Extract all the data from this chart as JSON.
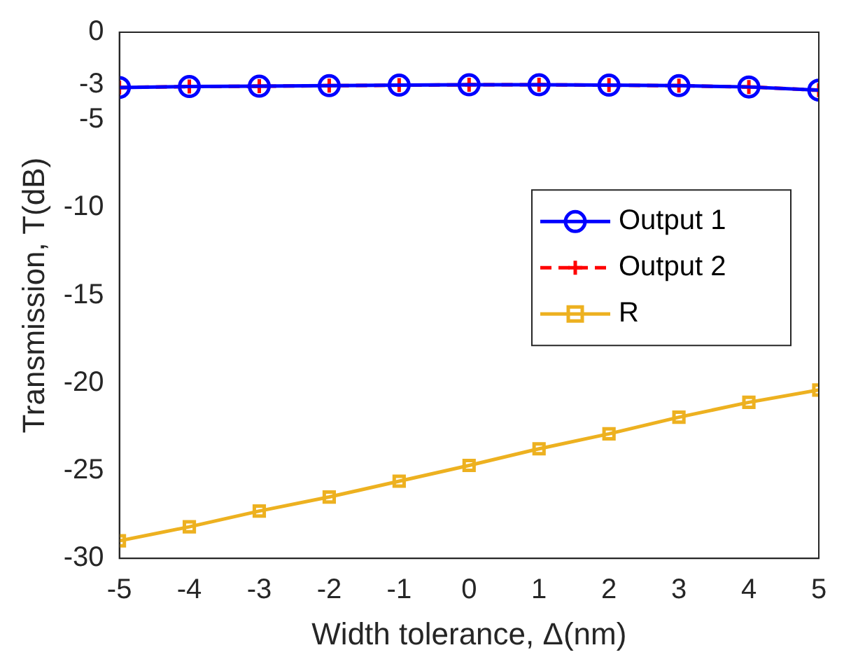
{
  "chart_data": {
    "type": "line",
    "xlabel": "Width tolerance, Δ(nm)",
    "ylabel": "Transmission, T(dB)",
    "x": [
      -5,
      -4,
      -3,
      -2,
      -1,
      0,
      1,
      2,
      3,
      4,
      5
    ],
    "series": [
      {
        "name": "Output 1",
        "color": "#0000ff",
        "marker": "circle",
        "line_style": "solid",
        "values": [
          -3.15,
          -3.1,
          -3.08,
          -3.05,
          -3.02,
          -3.0,
          -3.0,
          -3.02,
          -3.05,
          -3.12,
          -3.3
        ]
      },
      {
        "name": "Output 2",
        "color": "#ff0000",
        "marker": "cross",
        "line_style": "dashed",
        "values": [
          -3.15,
          -3.1,
          -3.08,
          -3.05,
          -3.02,
          -3.0,
          -3.0,
          -3.02,
          -3.05,
          -3.12,
          -3.3
        ]
      },
      {
        "name": "R",
        "color": "#edb120",
        "marker": "square",
        "line_style": "solid",
        "values": [
          -29.0,
          -28.2,
          -27.3,
          -26.5,
          -25.6,
          -24.7,
          -23.75,
          -22.9,
          -21.95,
          -21.1,
          -20.4
        ]
      }
    ],
    "xlim": [
      -5,
      5
    ],
    "xticks": [
      -5,
      -4,
      -3,
      -2,
      -1,
      0,
      1,
      2,
      3,
      4,
      5
    ],
    "ylim": [
      -30,
      0
    ],
    "yticks": [
      -30,
      -25,
      -20,
      -15,
      -10,
      -5,
      -3,
      0
    ],
    "grid": false,
    "legend": "right"
  }
}
